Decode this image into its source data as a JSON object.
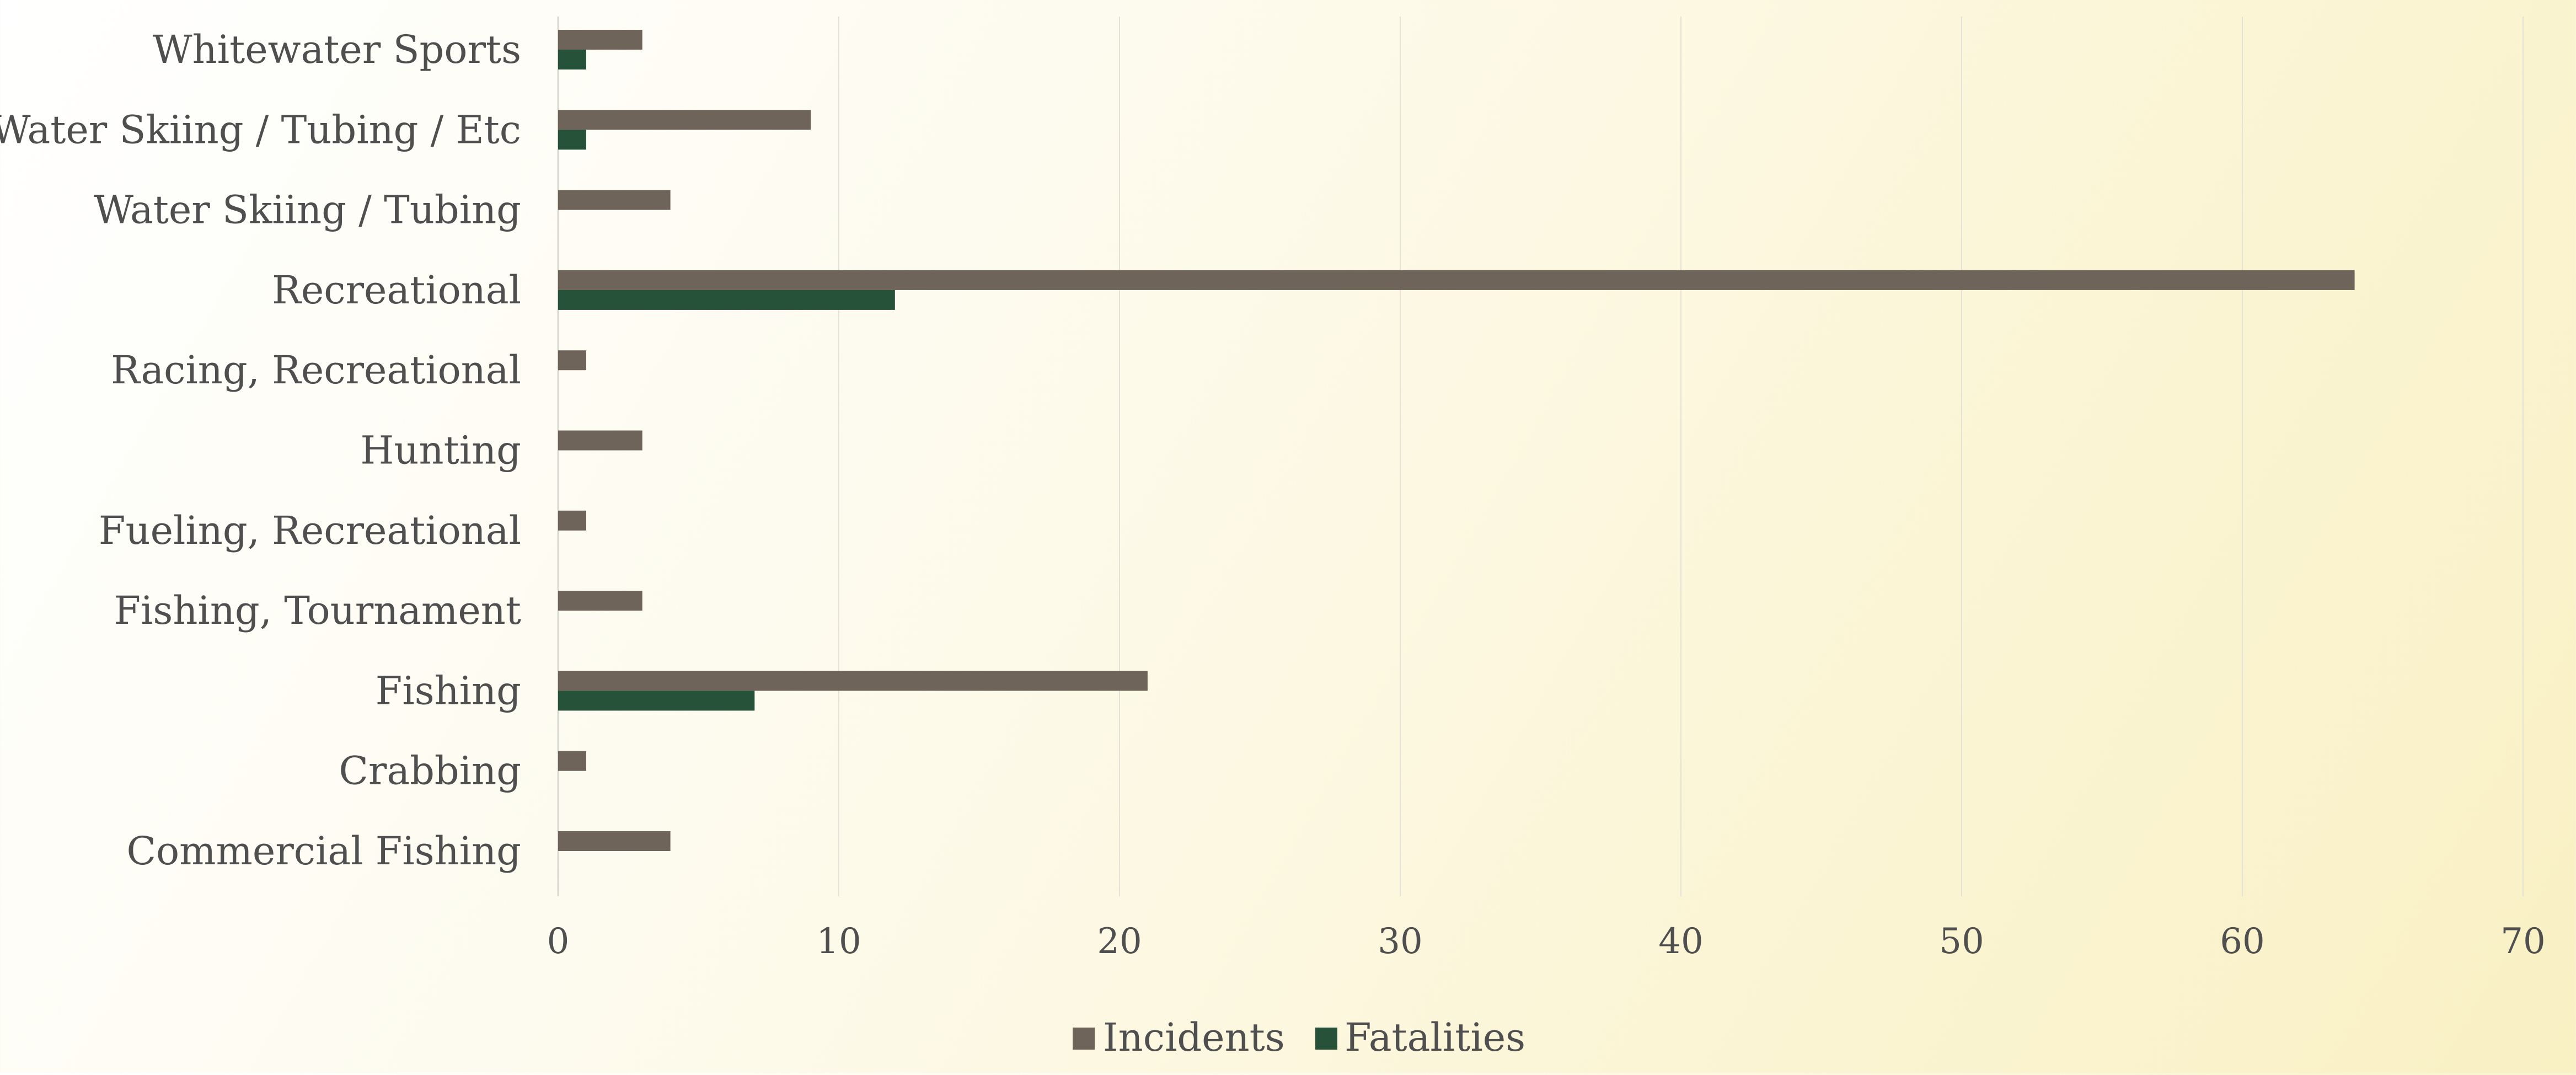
{
  "chart_data": {
    "type": "bar",
    "orientation": "horizontal",
    "categories": [
      "Whitewater Sports",
      "Water Skiing / Tubing / Etc",
      "Water Skiing / Tubing",
      "Recreational",
      "Racing, Recreational",
      "Hunting",
      "Fueling, Recreational",
      "Fishing, Tournament",
      "Fishing",
      "Crabbing",
      "Commercial Fishing"
    ],
    "series": [
      {
        "name": "Incidents",
        "color": "#6e6459",
        "values": [
          3,
          9,
          4,
          64,
          1,
          3,
          1,
          3,
          21,
          1,
          4
        ]
      },
      {
        "name": "Fatalities",
        "color": "#27523a",
        "values": [
          1,
          1,
          0,
          12,
          0,
          0,
          0,
          0,
          7,
          0,
          0
        ]
      }
    ],
    "xlim": [
      0,
      70
    ],
    "xticks": [
      "0",
      "10",
      "20",
      "30",
      "40",
      "50",
      "60",
      "70"
    ],
    "grid": true,
    "legend_position": "bottom-center"
  }
}
